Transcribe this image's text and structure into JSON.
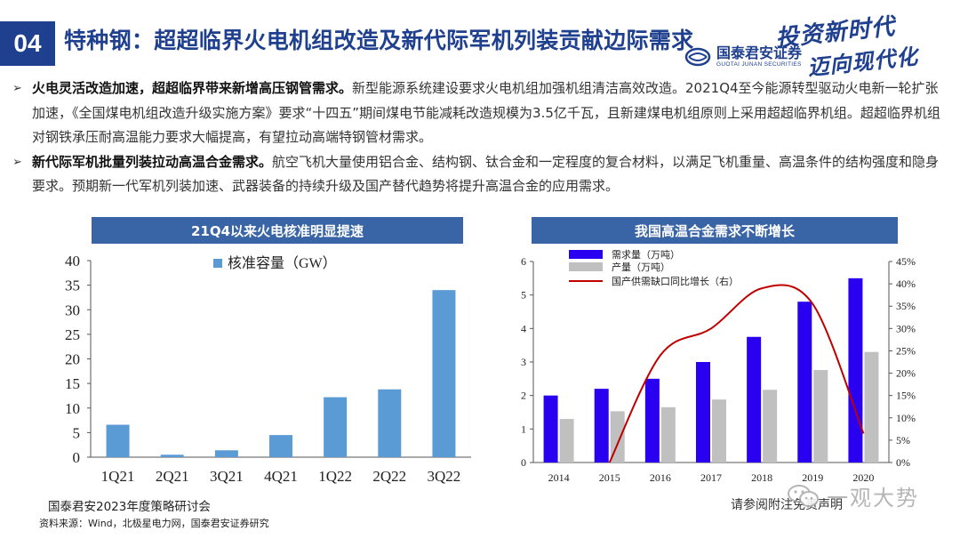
{
  "header": {
    "page_number": "04",
    "title": "特种钢：超超临界火电机组改造及新代际军机列装贡献边际需求",
    "brand_cn": "国泰君安证券",
    "brand_en": "GUOTAI JUNAN SECURITIES",
    "slogan_line1": "投资新时代",
    "slogan_line2": "迈向现代化"
  },
  "bullets": [
    {
      "bold": "火电灵活改造加速，超超临界带来新增高压钢管需求。",
      "text": "新型能源系统建设要求火电机组加强机组清洁高效改造。2021Q4至今能源转型驱动火电新一轮扩张加速，《全国煤电机组改造升级实施方案》要求“十四五”期间煤电节能减耗改造规模为3.5亿千瓦，且新建煤电机组原则上采用超超临界机组。超超临界机组对钢铁承压耐高温能力要求大幅提高，有望拉动高端特钢管材需求。"
    },
    {
      "bold": "新代际军机批量列装拉动高温合金需求。",
      "text": "航空飞机大量使用铝合金、结构钢、钛合金和一定程度的复合材料，以满足飞机重量、高温条件的结构强度和隐身要求。预期新一代军机列装加速、武器装备的持续升级及国产替代趋势将提升高温合金的应用需求。"
    }
  ],
  "charts": {
    "left_title": "21Q4以来火电核准明显提速",
    "right_title": "我国高温合金需求不断增长"
  },
  "chart_data": [
    {
      "type": "bar",
      "title": "21Q4以来火电核准明显提速",
      "categories": [
        "1Q21",
        "2Q21",
        "3Q21",
        "4Q21",
        "1Q22",
        "2Q22",
        "3Q22"
      ],
      "series": [
        {
          "name": "核准容量（GW）",
          "values": [
            6.6,
            0.5,
            1.4,
            4.5,
            12.2,
            13.8,
            34.0
          ],
          "color": "#5b9bd5"
        }
      ],
      "ylim": [
        0,
        40
      ],
      "yticks": [
        "0",
        "5",
        "10",
        "15",
        "20",
        "25",
        "30",
        "35",
        "40"
      ],
      "legend": "top-left"
    },
    {
      "type": "bar",
      "title": "我国高温合金需求不断增长",
      "categories": [
        "2014",
        "2015",
        "2016",
        "2017",
        "2018",
        "2019",
        "2020"
      ],
      "series": [
        {
          "name": "需求量（万吨）",
          "values": [
            2.0,
            2.2,
            2.5,
            3.0,
            3.75,
            4.8,
            5.5
          ],
          "color": "#2a00f0",
          "axis": "left",
          "kind": "bar"
        },
        {
          "name": "产量（万吨）",
          "values": [
            1.3,
            1.53,
            1.65,
            1.88,
            2.17,
            2.76,
            3.3
          ],
          "color": "#c0c0c0",
          "axis": "left",
          "kind": "bar"
        },
        {
          "name": "国产供需缺口同比增长（右）",
          "values": [
            null,
            0.0,
            0.24,
            0.3,
            0.39,
            0.355,
            0.065
          ],
          "color": "#c00000",
          "axis": "right",
          "kind": "line"
        }
      ],
      "ylim": [
        0,
        6
      ],
      "yticks": [
        "0",
        "1",
        "2",
        "3",
        "4",
        "5",
        "6"
      ],
      "y2lim": [
        0,
        0.45
      ],
      "y2ticks": [
        "0%",
        "5%",
        "10%",
        "15%",
        "20%",
        "25%",
        "30%",
        "35%",
        "40%",
        "45%"
      ],
      "legend": "top-left"
    }
  ],
  "footer": {
    "event": "国泰君安2023年度策略研讨会",
    "source": "资料来源：Wind，北极星电力网，国泰君安证券研究",
    "note": "请参阅附注免责声明",
    "watermark": "一观大势"
  },
  "colors": {
    "brand": "#1f3f8f",
    "chart_header": "#3964a6"
  },
  "icons": {
    "bullet": "chevron-right-icon",
    "logo": "gtja-logo-icon",
    "watermark": "wechat-icon"
  }
}
